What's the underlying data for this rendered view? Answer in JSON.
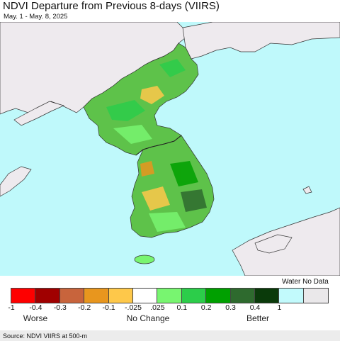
{
  "header": {
    "title": "NDVI Departure from Previous 8-days (VIIRS)",
    "subtitle": "May. 1 - May. 8, 2025"
  },
  "map": {
    "sea_color": "#bff9fb",
    "land_nodata_color": "#eeeaee",
    "land_dominant_color": "#5ec24a"
  },
  "legend": {
    "water_label": "Water",
    "nodata_label": "No Data",
    "colors": [
      "#fe0000",
      "#a00000",
      "#c8643c",
      "#e8961e",
      "#fec84a",
      "#ffffff",
      "#78f570",
      "#2ccd4a",
      "#00a000",
      "#2e6a2e",
      "#0a3a0a",
      "#c2fafc",
      "#eae8ea"
    ],
    "ticks": [
      "-1",
      "-0.4",
      "-0.3",
      "-0.2",
      "-0.1",
      "-.025",
      ".025",
      "0.1",
      "0.2",
      "0.3",
      "0.4",
      "1"
    ],
    "categories": [
      "Worse",
      "No Change",
      "Better"
    ]
  },
  "footer": {
    "source": "Source: NDVI VIIRS at 500-m"
  }
}
